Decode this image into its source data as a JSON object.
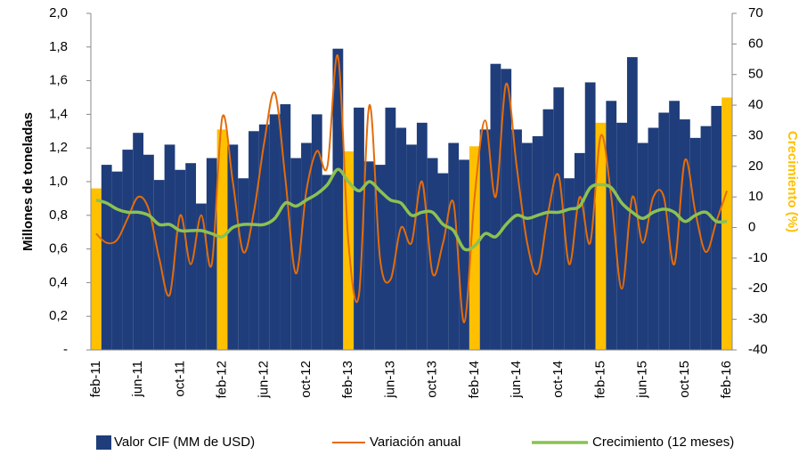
{
  "chart_data": {
    "type": "combo",
    "categories": [
      "feb-11",
      null,
      null,
      null,
      "jun-11",
      null,
      null,
      null,
      "oct-11",
      null,
      null,
      null,
      "feb-12",
      null,
      null,
      null,
      "jun-12",
      null,
      null,
      null,
      "oct-12",
      null,
      null,
      null,
      "feb-13",
      null,
      null,
      null,
      "jun-13",
      null,
      null,
      null,
      "oct-13",
      null,
      null,
      null,
      "feb-14",
      null,
      null,
      null,
      "jun-14",
      null,
      null,
      null,
      "oct-14",
      null,
      null,
      null,
      "feb-15",
      null,
      null,
      null,
      "jun-15",
      null,
      null,
      null,
      "oct-15",
      null,
      null,
      null,
      "feb-16"
    ],
    "series": [
      {
        "name": "Valor CIF (MM de USD)",
        "kind": "bar",
        "axis": "y",
        "color": "#1f3d7a",
        "point_colors": [
          "#ffc000",
          "#1f3d7a",
          "#1f3d7a",
          "#1f3d7a",
          "#1f3d7a",
          "#1f3d7a",
          "#1f3d7a",
          "#1f3d7a",
          "#1f3d7a",
          "#1f3d7a",
          "#1f3d7a",
          "#1f3d7a",
          "#ffc000",
          "#1f3d7a",
          "#1f3d7a",
          "#1f3d7a",
          "#1f3d7a",
          "#1f3d7a",
          "#1f3d7a",
          "#1f3d7a",
          "#1f3d7a",
          "#1f3d7a",
          "#1f3d7a",
          "#1f3d7a",
          "#ffc000",
          "#1f3d7a",
          "#1f3d7a",
          "#1f3d7a",
          "#1f3d7a",
          "#1f3d7a",
          "#1f3d7a",
          "#1f3d7a",
          "#1f3d7a",
          "#1f3d7a",
          "#1f3d7a",
          "#1f3d7a",
          "#ffc000",
          "#1f3d7a",
          "#1f3d7a",
          "#1f3d7a",
          "#1f3d7a",
          "#1f3d7a",
          "#1f3d7a",
          "#1f3d7a",
          "#1f3d7a",
          "#1f3d7a",
          "#1f3d7a",
          "#1f3d7a",
          "#ffc000",
          "#1f3d7a",
          "#1f3d7a",
          "#1f3d7a",
          "#1f3d7a",
          "#1f3d7a",
          "#1f3d7a",
          "#1f3d7a",
          "#1f3d7a",
          "#1f3d7a",
          "#1f3d7a",
          "#1f3d7a",
          "#ffc000"
        ],
        "values": [
          0.96,
          1.1,
          1.06,
          1.19,
          1.29,
          1.16,
          1.01,
          1.22,
          1.07,
          1.11,
          0.87,
          1.14,
          1.31,
          1.22,
          1.02,
          1.3,
          1.34,
          1.4,
          1.46,
          1.14,
          1.23,
          1.4,
          1.04,
          1.79,
          1.18,
          1.44,
          1.12,
          1.1,
          1.44,
          1.32,
          1.22,
          1.35,
          1.14,
          1.05,
          1.23,
          1.13,
          1.21,
          1.31,
          1.7,
          1.67,
          1.31,
          1.23,
          1.27,
          1.43,
          1.56,
          1.02,
          1.17,
          1.59,
          1.35,
          1.48,
          1.35,
          1.74,
          1.23,
          1.32,
          1.41,
          1.48,
          1.37,
          1.26,
          1.33,
          1.45,
          1.5
        ]
      },
      {
        "name": "Variación anual",
        "kind": "line",
        "axis": "y2",
        "color": "#e46c0a",
        "values": [
          -2,
          -5,
          -4,
          3,
          10,
          6,
          -10,
          -22,
          4,
          -12,
          4,
          -12,
          36,
          15,
          -8,
          5,
          28,
          44,
          16,
          -15,
          12,
          25,
          20,
          56,
          -5,
          -22,
          40,
          -10,
          -17,
          0,
          -5,
          15,
          -15,
          -5,
          8,
          -31,
          10,
          35,
          10,
          47,
          20,
          -5,
          -15,
          5,
          17,
          -12,
          10,
          -5,
          30,
          10,
          -20,
          10,
          -5,
          10,
          10,
          -12,
          22,
          5,
          -8,
          2,
          12
        ]
      },
      {
        "name": "Crecimiento (12 meses)",
        "kind": "line",
        "axis": "y2",
        "color": "#8cc152",
        "values": [
          9,
          8,
          6,
          5,
          5,
          4,
          1,
          1,
          -1,
          -1,
          -1,
          -2,
          -3,
          0,
          1,
          1,
          1,
          3,
          8,
          7,
          9,
          11,
          14,
          19,
          15,
          12,
          15,
          12,
          9,
          8,
          4,
          5,
          5,
          1,
          -1,
          -7,
          -6,
          -2,
          -3,
          1,
          4,
          3,
          4,
          5,
          5,
          6,
          7,
          13,
          14,
          13,
          8,
          5,
          3,
          5,
          6,
          5,
          2,
          4,
          5,
          2,
          2
        ]
      }
    ],
    "y_label": "Millones de toneladas",
    "y2_label": "Crecimiento (%)",
    "y2_label_color": "#ffc000",
    "ylim": [
      0,
      2.0
    ],
    "yticks": [
      {
        "value": 0,
        "label": "-"
      },
      {
        "value": 0.2,
        "label": "0,2"
      },
      {
        "value": 0.4,
        "label": "0,4"
      },
      {
        "value": 0.6,
        "label": "0,6"
      },
      {
        "value": 0.8,
        "label": "0,8"
      },
      {
        "value": 1.0,
        "label": "1,0"
      },
      {
        "value": 1.2,
        "label": "1,2"
      },
      {
        "value": 1.4,
        "label": "1,4"
      },
      {
        "value": 1.6,
        "label": "1,6"
      },
      {
        "value": 1.8,
        "label": "1,8"
      },
      {
        "value": 2.0,
        "label": "2,0"
      }
    ],
    "y2lim": [
      -40,
      70
    ],
    "y2ticks": [
      -40,
      -30,
      -20,
      -10,
      0,
      10,
      20,
      30,
      40,
      50,
      60,
      70
    ],
    "legend": "bottom"
  }
}
